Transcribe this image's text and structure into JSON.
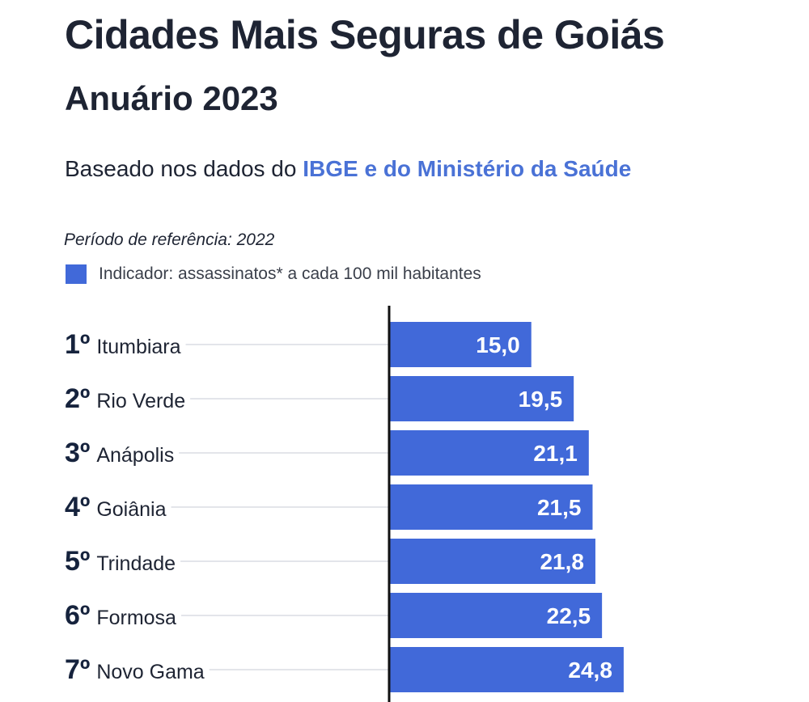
{
  "title": "Cidades Mais Seguras de Goiás",
  "subtitle": "Anuário 2023",
  "source_prefix": "Baseado nos dados do ",
  "source_highlight": "IBGE e do Ministério da Saúde",
  "period": "Período de referência: 2022",
  "legend_label": "Indicador: assassinatos* a cada 100 mil habitantes",
  "colors": {
    "bar": "#4169d9",
    "text": "#1e2433",
    "highlight": "#4a72d6",
    "leader": "#e3e5ea"
  },
  "chart_data": {
    "type": "bar",
    "orientation": "horizontal",
    "ranks": [
      "1º",
      "2º",
      "3º",
      "4º",
      "5º",
      "6º",
      "7º"
    ],
    "categories": [
      "Itumbiara",
      "Rio Verde",
      "Anápolis",
      "Goiânia",
      "Trindade",
      "Formosa",
      "Novo Gama"
    ],
    "values": [
      15.0,
      19.5,
      21.1,
      21.5,
      21.8,
      22.5,
      24.8
    ],
    "value_labels": [
      "15,0",
      "19,5",
      "21,1",
      "21,5",
      "21,8",
      "22,5",
      "24,8"
    ],
    "series": [
      {
        "name": "Indicador: assassinatos* a cada 100 mil habitantes",
        "values": [
          15.0,
          19.5,
          21.1,
          21.5,
          21.8,
          22.5,
          24.8
        ]
      }
    ],
    "xlim": [
      0,
      30
    ],
    "grid": false,
    "legend_position": "top-left"
  }
}
